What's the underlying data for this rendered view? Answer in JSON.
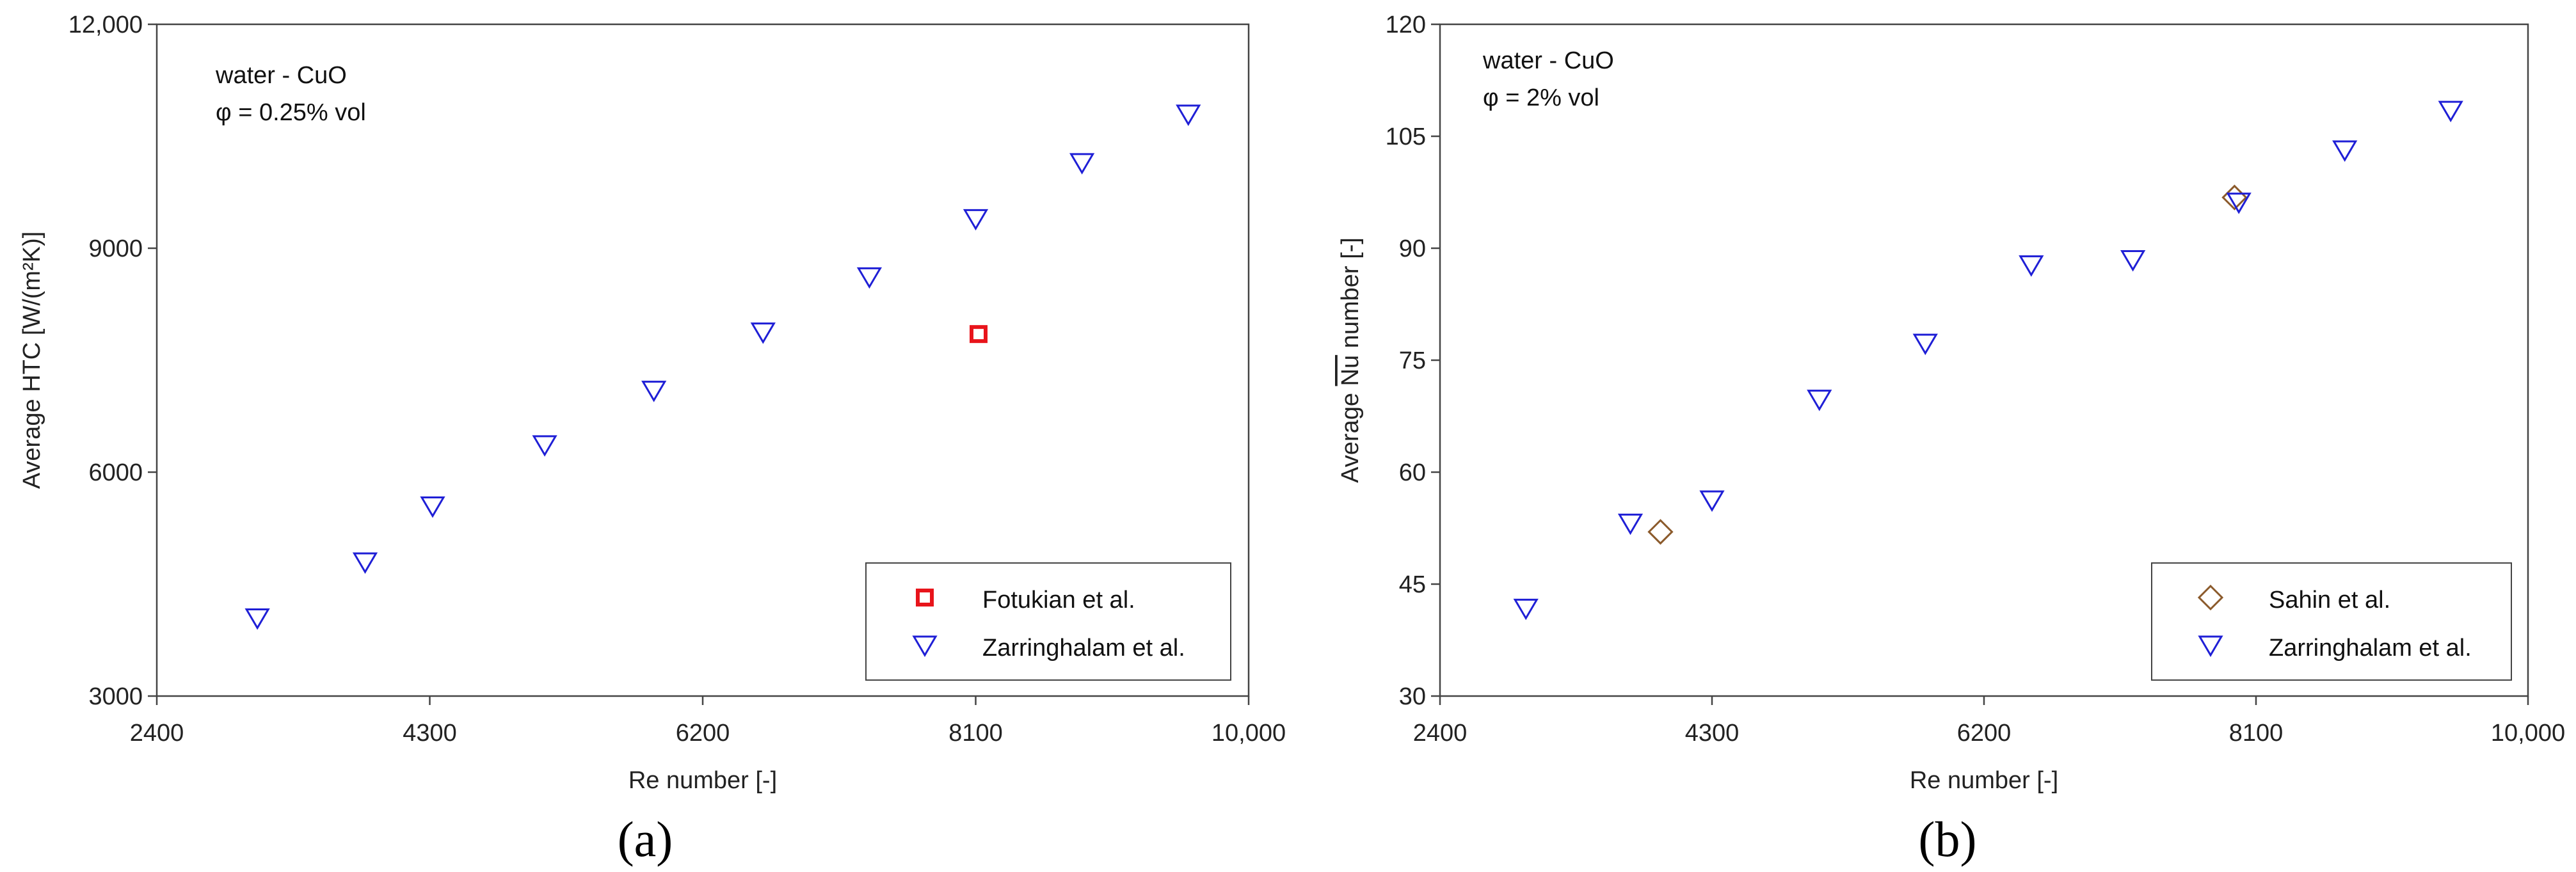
{
  "chart_data": [
    {
      "type": "scatter",
      "id": "a",
      "panel_label": "(a)",
      "xlabel": "Re number [-]",
      "ylabel": "Average HTC [W/(m²K)]",
      "xlim": [
        2400,
        10000
      ],
      "ylim": [
        3000,
        12000
      ],
      "xticks": [
        2400,
        4300,
        6200,
        8100,
        10000
      ],
      "xtick_labels": [
        "2400",
        "4300",
        "6200",
        "8100",
        "10,000"
      ],
      "yticks": [
        3000,
        6000,
        9000,
        12000
      ],
      "ytick_labels": [
        "3000",
        "6000",
        "9000",
        "12,000"
      ],
      "annotations": [
        "water - CuO",
        "φ = 0.25% vol"
      ],
      "legend_position": "bottom-right",
      "series": [
        {
          "name": "Fotukian et al.",
          "marker": "square",
          "color": "#e8141b",
          "x": [
            8120
          ],
          "y": [
            7850
          ]
        },
        {
          "name": "Zarringhalam et al.",
          "marker": "triangle-down",
          "color": "#1f1fd6",
          "x": [
            3100,
            3850,
            4320,
            5100,
            5860,
            6620,
            7360,
            8100,
            8840,
            9580
          ],
          "y": [
            4050,
            4800,
            5550,
            6370,
            7100,
            7880,
            8620,
            9400,
            10150,
            10800
          ]
        }
      ]
    },
    {
      "type": "scatter",
      "id": "b",
      "panel_label": "(b)",
      "xlabel": "Re number [-]",
      "ylabel_prefix": "Average ",
      "ylabel_nu": "Nu",
      "ylabel_suffix": " number [-]",
      "xlim": [
        2400,
        10000
      ],
      "ylim": [
        30,
        120
      ],
      "xticks": [
        2400,
        4300,
        6200,
        8100,
        10000
      ],
      "xtick_labels": [
        "2400",
        "4300",
        "6200",
        "8100",
        "10,000"
      ],
      "yticks": [
        30,
        45,
        60,
        75,
        90,
        105,
        120
      ],
      "ytick_labels": [
        "30",
        "45",
        "60",
        "75",
        "90",
        "105",
        "120"
      ],
      "annotations": [
        "water - CuO",
        "φ = 2% vol"
      ],
      "legend_position": "bottom-right",
      "series": [
        {
          "name": "Sahin et al.",
          "marker": "diamond",
          "color": "#8b5a2b",
          "x": [
            3940,
            7950
          ],
          "y": [
            52,
            96.8
          ]
        },
        {
          "name": "Zarringhalam et al.",
          "marker": "triangle-down",
          "color": "#1f1fd6",
          "x": [
            3000,
            3730,
            4300,
            5050,
            5790,
            6530,
            7240,
            7980,
            8720,
            9460
          ],
          "y": [
            41.8,
            53.2,
            56.3,
            69.8,
            77.3,
            87.8,
            88.5,
            96.2,
            103.2,
            108.5
          ]
        }
      ]
    }
  ]
}
